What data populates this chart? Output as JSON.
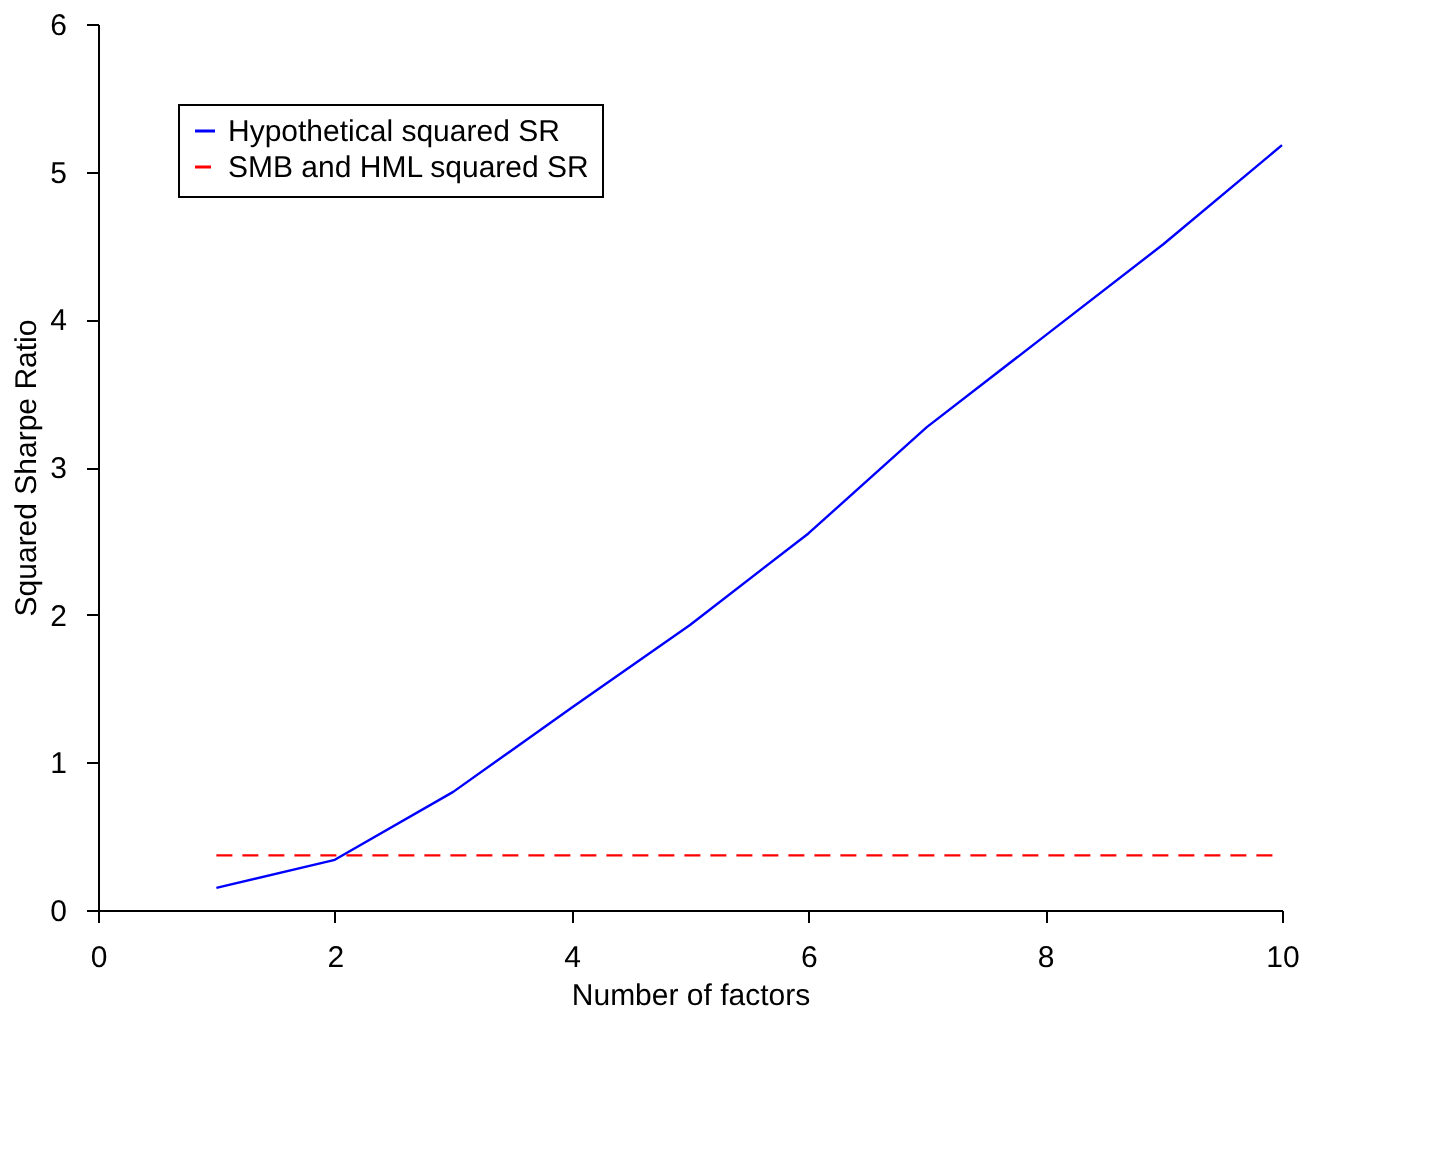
{
  "chart_data": {
    "type": "line",
    "xlabel": "Number of factors",
    "ylabel": "Squared Sharpe Ratio",
    "xlim": [
      0,
      10
    ],
    "xticks": [
      0,
      2,
      4,
      6,
      8,
      10
    ],
    "ylim": [
      0,
      6
    ],
    "yticks": [
      0,
      1,
      2,
      3,
      4,
      5,
      6
    ],
    "grid": false,
    "legend": "top left",
    "series": [
      {
        "name": "Hypothetical squared SR",
        "color": "#0000ff",
        "line_style": "solid",
        "x": [
          1,
          2,
          3,
          4,
          5,
          6,
          7,
          8,
          9,
          10
        ],
        "values": [
          0.15,
          0.34,
          0.8,
          1.37,
          1.93,
          2.55,
          3.27,
          3.89,
          4.51,
          5.18
        ]
      },
      {
        "name": "SMB and HML squared SR",
        "color": "#ff0000",
        "line_style": "dashed",
        "x": [
          1,
          10
        ],
        "values": [
          0.37,
          0.37
        ]
      }
    ]
  }
}
